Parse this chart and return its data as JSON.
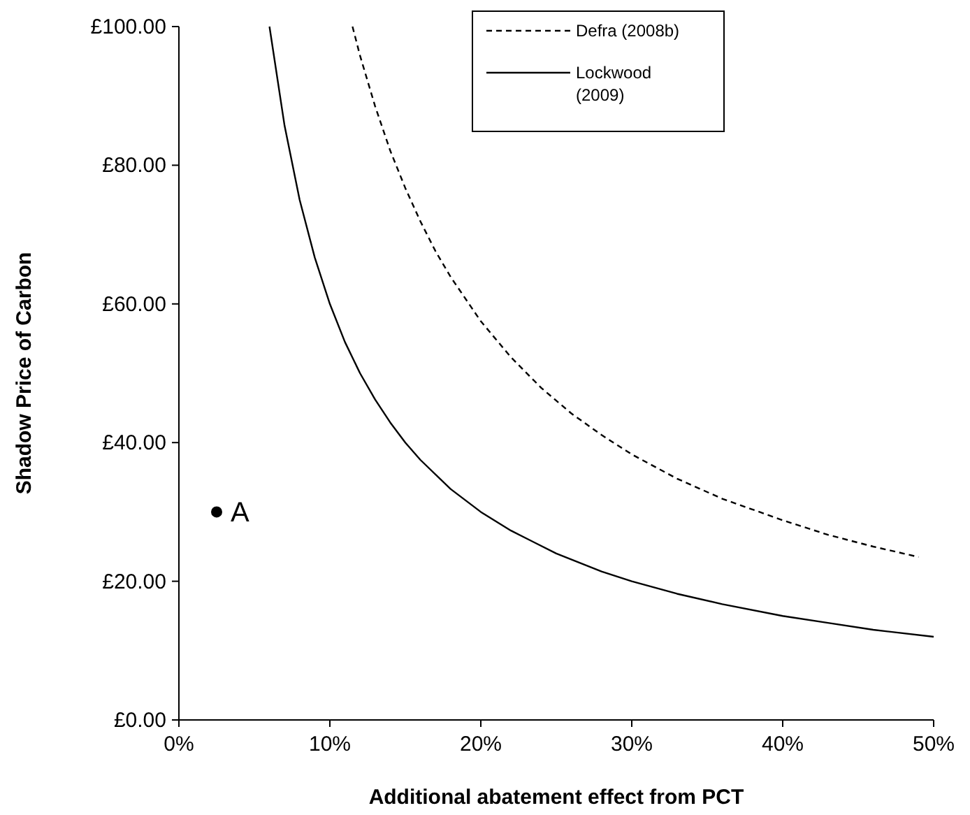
{
  "chart_data": {
    "type": "line",
    "xlabel": "Additional abatement effect from PCT",
    "ylabel": "Shadow Price of Carbon",
    "xlim": [
      0,
      50
    ],
    "xticks": [
      {
        "value": 0,
        "label": "0%"
      },
      {
        "value": 10,
        "label": "10%"
      },
      {
        "value": 20,
        "label": "20%"
      },
      {
        "value": 30,
        "label": "30%"
      },
      {
        "value": 40,
        "label": "40%"
      },
      {
        "value": 50,
        "label": "50%"
      }
    ],
    "ylim": [
      0,
      100
    ],
    "yticks": [
      {
        "value": 0,
        "label": "£0.00"
      },
      {
        "value": 20,
        "label": "£20.00"
      },
      {
        "value": 40,
        "label": "£40.00"
      },
      {
        "value": 60,
        "label": "£60.00"
      },
      {
        "value": 80,
        "label": "£80.00"
      },
      {
        "value": 100,
        "label": "£100.00"
      }
    ],
    "grid": false,
    "legend": "top right",
    "marker": "none",
    "series": [
      {
        "name": "Defra (2008b)",
        "color": "#000000",
        "line_style": "dashed",
        "x": [
          11.5,
          12,
          13,
          14,
          15,
          16,
          17,
          18,
          20,
          22,
          24,
          26,
          28,
          30,
          33,
          36,
          40,
          43,
          46,
          49
        ],
        "values": [
          100,
          95.8,
          88.5,
          82.1,
          76.7,
          71.9,
          67.6,
          63.9,
          57.5,
          52.3,
          47.9,
          44.2,
          41.1,
          38.3,
          34.8,
          31.9,
          28.8,
          26.7,
          25,
          23.5
        ]
      },
      {
        "name": "Lockwood (2009)",
        "color": "#000000",
        "line_style": "solid",
        "x": [
          6,
          7,
          8,
          9,
          10,
          11,
          12,
          13,
          14,
          15,
          16,
          18,
          20,
          22,
          25,
          28,
          30,
          33,
          36,
          40,
          43,
          46,
          50
        ],
        "values": [
          100,
          85.7,
          75,
          66.7,
          60,
          54.5,
          50,
          46.2,
          42.9,
          40,
          37.5,
          33.3,
          30,
          27.3,
          24,
          21.4,
          20,
          18.2,
          16.7,
          15,
          14,
          13,
          12
        ]
      },
      {
        "type": "scatter",
        "marker": "circle",
        "color": "#000000",
        "x": [
          2.5
        ],
        "values": [
          30
        ]
      }
    ],
    "annotations": [
      {
        "text": "A",
        "x": 2.5,
        "y": 30
      }
    ]
  }
}
